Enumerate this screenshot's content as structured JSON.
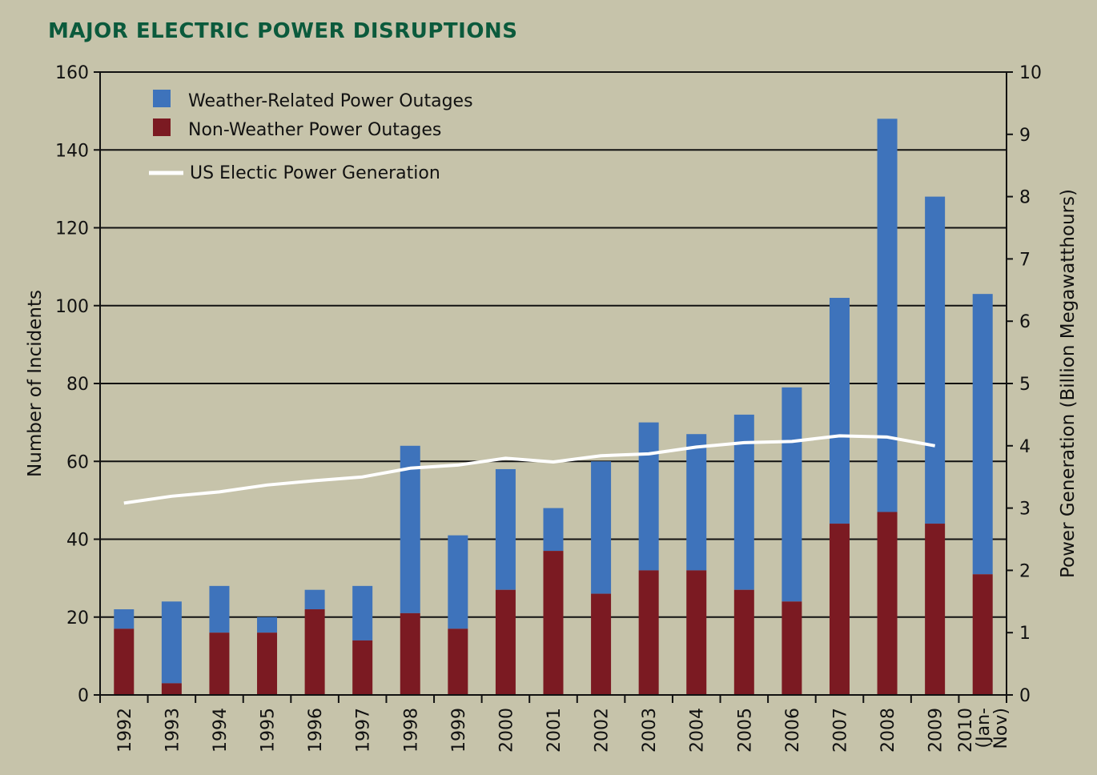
{
  "chart_data": {
    "type": "bar",
    "title": "MAJOR ELECTRIC POWER DISRUPTIONS",
    "stacked": true,
    "categories": [
      "1992",
      "1993",
      "1994",
      "1995",
      "1996",
      "1997",
      "1998",
      "1999",
      "2000",
      "2001",
      "2002",
      "2003",
      "2004",
      "2005",
      "2006",
      "2007",
      "2008",
      "2009",
      "2010 (Jan-Nov)"
    ],
    "category_label_lines": [
      [
        "1992"
      ],
      [
        "1993"
      ],
      [
        "1994"
      ],
      [
        "1995"
      ],
      [
        "1996"
      ],
      [
        "1997"
      ],
      [
        "1998"
      ],
      [
        "1999"
      ],
      [
        "2000"
      ],
      [
        "2001"
      ],
      [
        "2002"
      ],
      [
        "2003"
      ],
      [
        "2004"
      ],
      [
        "2005"
      ],
      [
        "2006"
      ],
      [
        "2007"
      ],
      [
        "2008"
      ],
      [
        "2009"
      ],
      [
        "2010",
        "(Jan-",
        "Nov)"
      ]
    ],
    "series": [
      {
        "name": "Non-Weather Power Outages",
        "type": "bar",
        "axis": "left",
        "color": "#7b1a22",
        "values": [
          17,
          3,
          16,
          16,
          22,
          14,
          21,
          17,
          27,
          37,
          26,
          32,
          32,
          27,
          24,
          44,
          47,
          44,
          31
        ]
      },
      {
        "name": "Weather-Related Power Outages",
        "type": "bar",
        "axis": "left",
        "color": "#3e73bb",
        "values": [
          5,
          21,
          12,
          4,
          5,
          14,
          43,
          24,
          31,
          11,
          34,
          38,
          35,
          45,
          55,
          58,
          101,
          84,
          72
        ]
      },
      {
        "name": "US Electic Power Generation",
        "type": "line",
        "axis": "right",
        "color": "#ffffff",
        "values": [
          3.08,
          3.19,
          3.26,
          3.37,
          3.44,
          3.5,
          3.64,
          3.69,
          3.8,
          3.74,
          3.84,
          3.87,
          3.98,
          4.05,
          4.07,
          4.16,
          4.14,
          4.0,
          null
        ]
      }
    ],
    "legend": [
      "Weather-Related Power Outages",
      "Non-Weather Power Outages",
      "US Electic Power Generation"
    ],
    "legend_position": "top-left",
    "ylabel": "Number of Incidents",
    "ylim": [
      0,
      160
    ],
    "yticks": [
      0,
      20,
      40,
      60,
      80,
      100,
      120,
      140,
      160
    ],
    "y2label": "Power Generation (Billion Megawatthours)",
    "y2lim": [
      0,
      10
    ],
    "y2ticks": [
      0,
      1,
      2,
      3,
      4,
      5,
      6,
      7,
      8,
      9,
      10
    ],
    "grid": true
  }
}
